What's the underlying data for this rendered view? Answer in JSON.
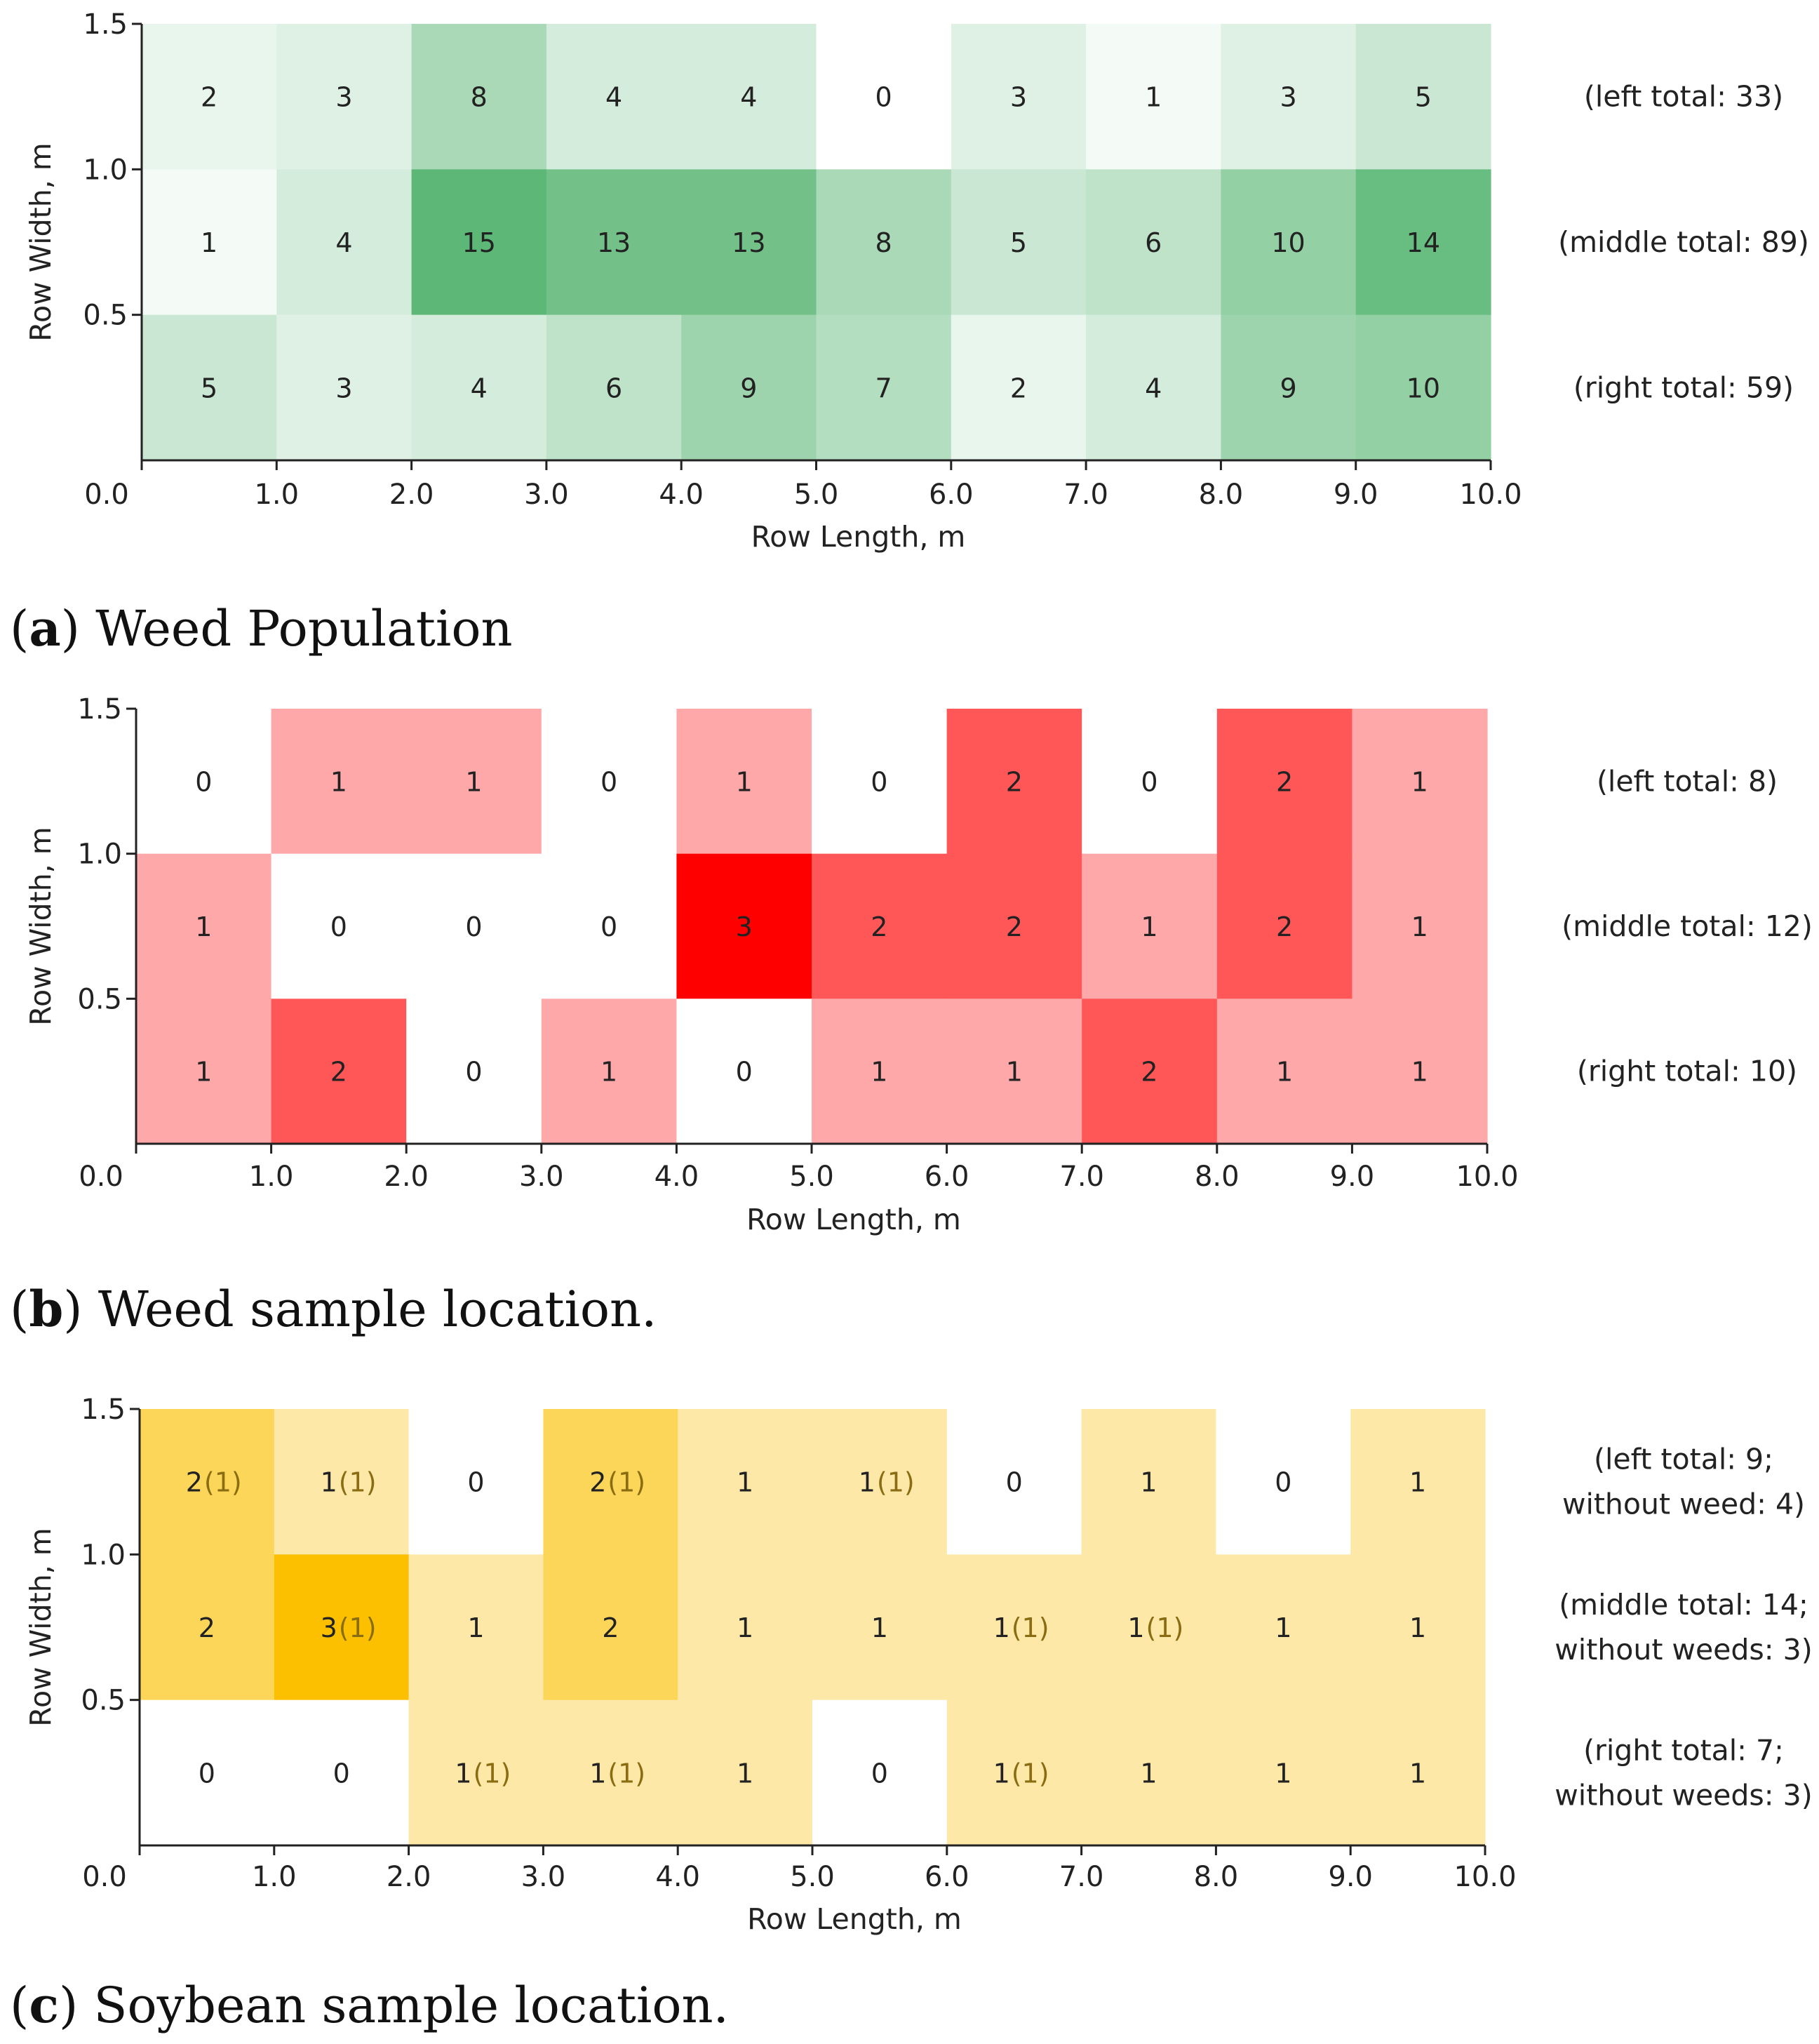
{
  "chart_data": [
    {
      "type": "heatmap",
      "id": "a",
      "caption_letter": "a",
      "caption_text": "Weed Population",
      "xlabel": "Row Length, m",
      "ylabel": "Row Width, m",
      "xlim": [
        0,
        10
      ],
      "ylim": [
        0,
        1.5
      ],
      "x_ticks": [
        "0.0",
        "1.0",
        "2.0",
        "3.0",
        "4.0",
        "5.0",
        "6.0",
        "7.0",
        "8.0",
        "9.0",
        "10.0"
      ],
      "y_ticks": [
        "0.5",
        "1.0",
        "1.5"
      ],
      "color": "#5db877",
      "max_value": 15,
      "rows": [
        {
          "name": "left",
          "values": [
            2,
            3,
            8,
            4,
            4,
            0,
            3,
            1,
            3,
            5
          ],
          "total_label": [
            "(left total: 33)"
          ]
        },
        {
          "name": "middle",
          "values": [
            1,
            4,
            15,
            13,
            13,
            8,
            5,
            6,
            10,
            14
          ],
          "total_label": [
            "(middle total: 89)"
          ]
        },
        {
          "name": "right",
          "values": [
            5,
            3,
            4,
            6,
            9,
            7,
            2,
            4,
            9,
            10
          ],
          "total_label": [
            "(right total: 59)"
          ]
        }
      ]
    },
    {
      "type": "heatmap",
      "id": "b",
      "caption_letter": "b",
      "caption_text": "Weed sample location.",
      "xlabel": "Row Length, m",
      "ylabel": "Row Width, m",
      "xlim": [
        0,
        10
      ],
      "ylim": [
        0,
        1.5
      ],
      "x_ticks": [
        "0.0",
        "1.0",
        "2.0",
        "3.0",
        "4.0",
        "5.0",
        "6.0",
        "7.0",
        "8.0",
        "9.0",
        "10.0"
      ],
      "y_ticks": [
        "0.5",
        "1.0",
        "1.5"
      ],
      "level_colors": [
        "#ffffff",
        "#ffa8a9",
        "#ff5657",
        "#ff0000"
      ],
      "rows": [
        {
          "name": "left",
          "values": [
            0,
            1,
            1,
            0,
            1,
            0,
            2,
            0,
            2,
            1
          ],
          "total_label": [
            "(left total: 8)"
          ]
        },
        {
          "name": "middle",
          "values": [
            1,
            0,
            0,
            0,
            3,
            2,
            2,
            1,
            2,
            1
          ],
          "total_label": [
            "(middle total: 12)"
          ]
        },
        {
          "name": "right",
          "values": [
            1,
            2,
            0,
            1,
            0,
            1,
            1,
            2,
            1,
            1
          ],
          "total_label": [
            "(right total: 10)"
          ]
        }
      ]
    },
    {
      "type": "heatmap",
      "id": "c",
      "caption_letter": "c",
      "caption_text": "Soybean sample location.",
      "xlabel": "Row Length, m",
      "ylabel": "Row Width, m",
      "xlim": [
        0,
        10
      ],
      "ylim": [
        0,
        1.5
      ],
      "x_ticks": [
        "0.0",
        "1.0",
        "2.0",
        "3.0",
        "4.0",
        "5.0",
        "6.0",
        "7.0",
        "8.0",
        "9.0",
        "10.0"
      ],
      "y_ticks": [
        "0.5",
        "1.0",
        "1.5"
      ],
      "level_colors": [
        "#ffffff",
        "#fde8a8",
        "#fcd658",
        "#fcc000"
      ],
      "rows": [
        {
          "name": "left",
          "values": [
            2,
            1,
            0,
            2,
            1,
            1,
            0,
            1,
            0,
            1
          ],
          "paren": [
            "(1)",
            "(1)",
            "",
            "(1)",
            "",
            "(1)",
            "",
            "",
            "",
            ""
          ],
          "total_label": [
            "(left total: 9;",
            "without weed: 4)"
          ]
        },
        {
          "name": "middle",
          "values": [
            2,
            3,
            1,
            2,
            1,
            1,
            1,
            1,
            1,
            1
          ],
          "paren": [
            "",
            "(1)",
            "",
            "",
            "",
            "",
            "(1)",
            "(1)",
            "",
            ""
          ],
          "total_label": [
            "(middle total: 14;",
            "without weeds: 3)"
          ]
        },
        {
          "name": "right",
          "values": [
            0,
            0,
            1,
            1,
            1,
            0,
            1,
            1,
            1,
            1
          ],
          "paren": [
            "",
            "",
            "(1)",
            "(1)",
            "",
            "",
            "(1)",
            "",
            "",
            ""
          ],
          "total_label": [
            "(right total: 7;",
            "without weeds: 3)"
          ]
        }
      ]
    }
  ]
}
